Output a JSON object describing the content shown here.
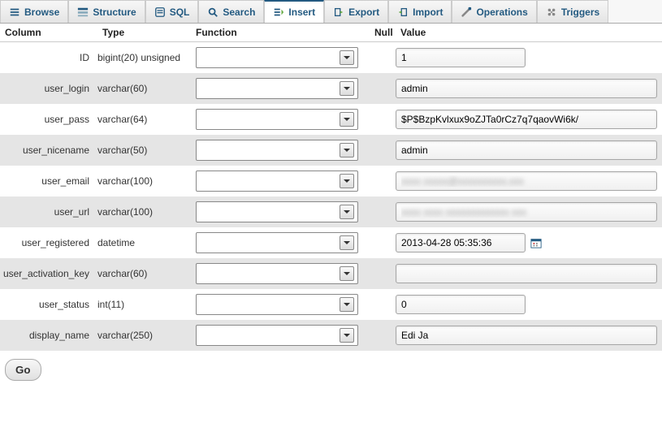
{
  "tabs": [
    {
      "label": "Browse",
      "icon": "browse-icon",
      "active": false
    },
    {
      "label": "Structure",
      "icon": "structure-icon",
      "active": false
    },
    {
      "label": "SQL",
      "icon": "sql-icon",
      "active": false
    },
    {
      "label": "Search",
      "icon": "search-icon",
      "active": false
    },
    {
      "label": "Insert",
      "icon": "insert-icon",
      "active": true
    },
    {
      "label": "Export",
      "icon": "export-icon",
      "active": false
    },
    {
      "label": "Import",
      "icon": "import-icon",
      "active": false
    },
    {
      "label": "Operations",
      "icon": "operations-icon",
      "active": false
    },
    {
      "label": "Triggers",
      "icon": "triggers-icon",
      "active": false
    }
  ],
  "headers": {
    "column": "Column",
    "type": "Type",
    "function": "Function",
    "null": "Null",
    "value": "Value"
  },
  "rows": [
    {
      "column": "ID",
      "type": "bigint(20) unsigned",
      "value": "1",
      "width": "short",
      "blur": false,
      "calendar": false
    },
    {
      "column": "user_login",
      "type": "varchar(60)",
      "value": "admin",
      "width": "long",
      "blur": false,
      "calendar": false
    },
    {
      "column": "user_pass",
      "type": "varchar(64)",
      "value": "$P$BzpKvlxux9oZJTa0rCz7q7qaovWi6k/",
      "width": "long",
      "blur": false,
      "calendar": false
    },
    {
      "column": "user_nicename",
      "type": "varchar(50)",
      "value": "admin",
      "width": "long",
      "blur": false,
      "calendar": false
    },
    {
      "column": "user_email",
      "type": "varchar(100)",
      "value": "xxxx xxxxx@xxxxxxxxxx.xxx",
      "width": "long",
      "blur": true,
      "calendar": false
    },
    {
      "column": "user_url",
      "type": "varchar(100)",
      "value": "xxxx xxxx xxxxxxxxxxxxx xxx",
      "width": "long",
      "blur": true,
      "calendar": false
    },
    {
      "column": "user_registered",
      "type": "datetime",
      "value": "2013-04-28 05:35:36",
      "width": "short",
      "blur": false,
      "calendar": true
    },
    {
      "column": "user_activation_key",
      "type": "varchar(60)",
      "value": "",
      "width": "long",
      "blur": false,
      "calendar": false
    },
    {
      "column": "user_status",
      "type": "int(11)",
      "value": "0",
      "width": "short",
      "blur": false,
      "calendar": false
    },
    {
      "column": "display_name",
      "type": "varchar(250)",
      "value": "Edi Ja",
      "width": "long",
      "blur": false,
      "calendar": false
    }
  ],
  "go_label": "Go",
  "colors": {
    "link": "#235a81",
    "alt_row": "#e5e5e5",
    "border": "#aaaaaa"
  }
}
